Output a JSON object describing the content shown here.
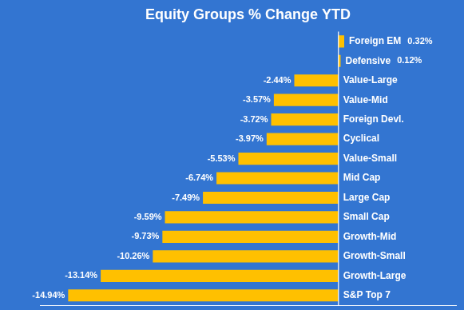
{
  "chart_data": {
    "type": "bar",
    "title": "Equity Groups % Change YTD",
    "orientation": "horizontal",
    "categories": [
      "S&P Top 7",
      "Growth-Large",
      "Growth-Small",
      "Growth-Mid",
      "Small Cap",
      "Large Cap",
      "Mid Cap",
      "Value-Small",
      "Cyclical",
      "Foreign Devl.",
      "Value-Mid",
      "Value-Large",
      "Defensive",
      "Foreign EM"
    ],
    "values": [
      -14.94,
      -13.14,
      -10.26,
      -9.73,
      -9.59,
      -7.49,
      -6.74,
      -5.53,
      -3.97,
      -3.72,
      -3.57,
      -2.44,
      0.12,
      0.32
    ],
    "value_labels": [
      "-14.94%",
      "-13.14%",
      "-10.26%",
      "-9.73%",
      "-9.59%",
      "-7.49%",
      "-6.74%",
      "-5.53%",
      "-3.97%",
      "-3.72%",
      "-3.57%",
      "-2.44%",
      "0.12%",
      "0.32%"
    ],
    "color": "#FFC000",
    "xlim": [
      -16.5,
      6.5
    ],
    "data_labels": true,
    "grid": false,
    "tick_labels": false
  }
}
